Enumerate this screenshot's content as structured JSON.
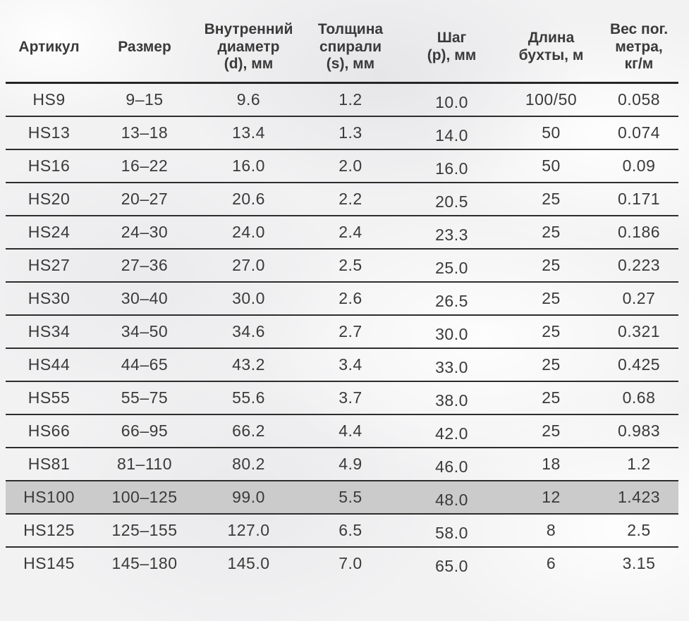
{
  "table": {
    "columns": [
      "Артикул",
      "Размер",
      "Внутренний\nдиаметр\n(d), мм",
      "Толщина\nспирали\n(s), мм",
      "Шаг\n(p), мм",
      "Длина\nбухты, м",
      "Вес пог.\nметра,\nкг/м"
    ],
    "rows": [
      [
        "HS9",
        "9–15",
        "9.6",
        "1.2",
        "10.0",
        "100/50",
        "0.058"
      ],
      [
        "HS13",
        "13–18",
        "13.4",
        "1.3",
        "14.0",
        "50",
        "0.074"
      ],
      [
        "HS16",
        "16–22",
        "16.0",
        "2.0",
        "16.0",
        "50",
        "0.09"
      ],
      [
        "HS20",
        "20–27",
        "20.6",
        "2.2",
        "20.5",
        "25",
        "0.171"
      ],
      [
        "HS24",
        "24–30",
        "24.0",
        "2.4",
        "23.3",
        "25",
        "0.186"
      ],
      [
        "HS27",
        "27–36",
        "27.0",
        "2.5",
        "25.0",
        "25",
        "0.223"
      ],
      [
        "HS30",
        "30–40",
        "30.0",
        "2.6",
        "26.5",
        "25",
        "0.27"
      ],
      [
        "HS34",
        "34–50",
        "34.6",
        "2.7",
        "30.0",
        "25",
        "0.321"
      ],
      [
        "HS44",
        "44–65",
        "43.2",
        "3.4",
        "33.0",
        "25",
        "0.425"
      ],
      [
        "HS55",
        "55–75",
        "55.6",
        "3.7",
        "38.0",
        "25",
        "0.68"
      ],
      [
        "HS66",
        "66–95",
        "66.2",
        "4.4",
        "42.0",
        "25",
        "0.983"
      ],
      [
        "HS81",
        "81–110",
        "80.2",
        "4.9",
        "46.0",
        "18",
        "1.2"
      ],
      [
        "HS100",
        "100–125",
        "99.0",
        "5.5",
        "48.0",
        "12",
        "1.423"
      ],
      [
        "HS125",
        "125–155",
        "127.0",
        "6.5",
        "58.0",
        "8",
        "2.5"
      ],
      [
        "HS145",
        "145–180",
        "145.0",
        "7.0",
        "65.0",
        "6",
        "3.15"
      ]
    ],
    "highlight_row_index": 12
  },
  "colors": {
    "text": "#3a3a3a",
    "line": "#2d2d2d",
    "row_highlight": "#cbcbcb",
    "background": "#f2f2f3"
  }
}
